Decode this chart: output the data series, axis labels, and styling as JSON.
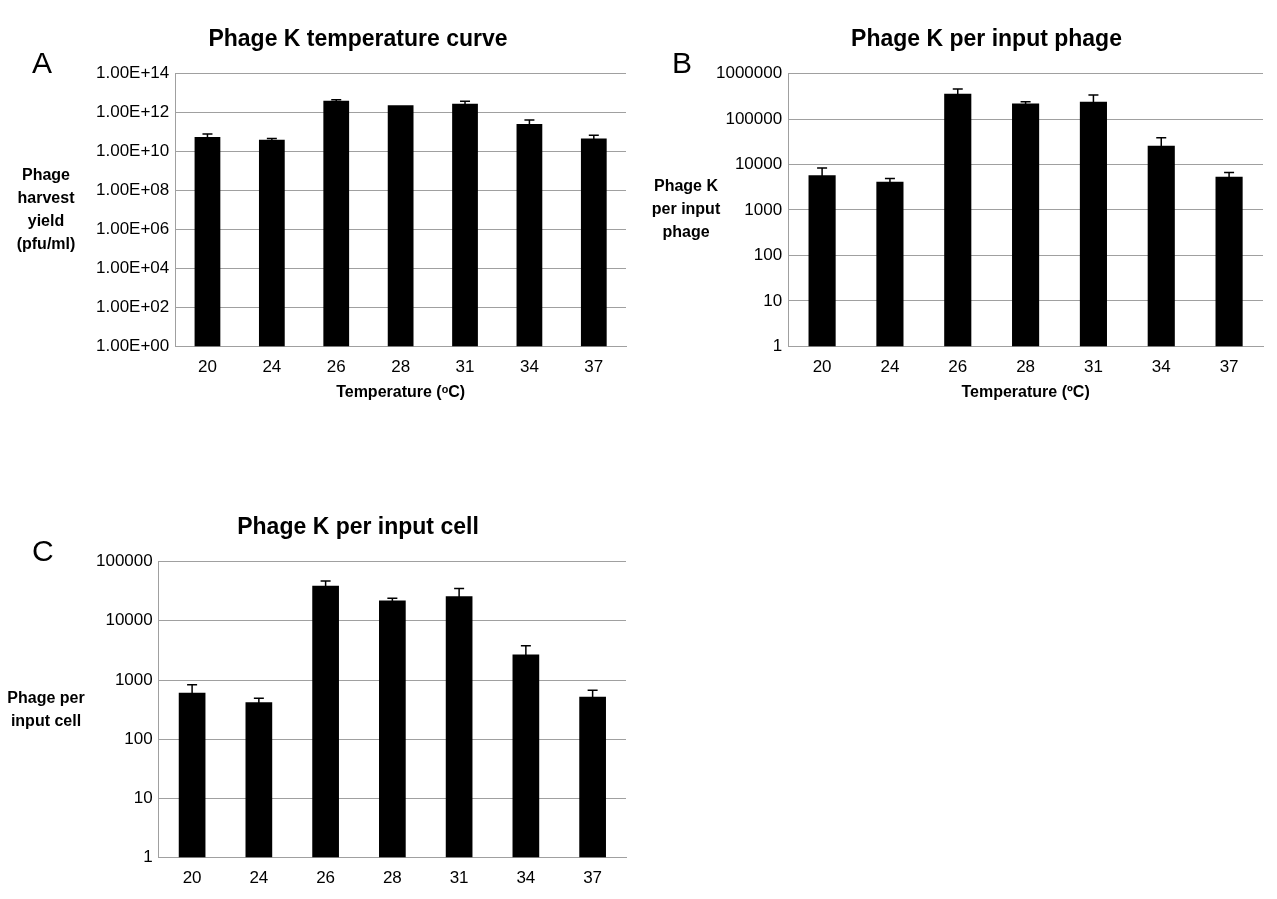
{
  "chart_data": [
    {
      "type": "bar",
      "title": "Phage K temperature curve",
      "xlabel": "Temperature (ᵒC)",
      "ylabel": "Phage harvest yield (pfu/ml)",
      "annotations": [
        "A"
      ],
      "categories": [
        "20",
        "24",
        "26",
        "28",
        "31",
        "34",
        "37"
      ],
      "values": [
        55000000000.0,
        40000000000.0,
        4000000000000.0,
        2400000000000.0,
        2800000000000.0,
        260000000000.0,
        47000000000.0
      ],
      "errors": [
        25000000000.0,
        7000000000.0,
        500000000000.0,
        null,
        1000000000000.0,
        160000000000.0,
        21000000000.0
      ],
      "color": "#000000",
      "log": true,
      "ylim": [
        1,
        100000000000000.0
      ],
      "yticks": [
        {
          "value": 1,
          "label": "1.00E+00"
        },
        {
          "value": 100,
          "label": "1.00E+02"
        },
        {
          "value": 10000,
          "label": "1.00E+04"
        },
        {
          "value": 1000000.0,
          "label": "1.00E+06"
        },
        {
          "value": 100000000.0,
          "label": "1.00E+08"
        },
        {
          "value": 10000000000.0,
          "label": "1.00E+10"
        },
        {
          "value": 1000000000000.0,
          "label": "1.00E+12"
        },
        {
          "value": 100000000000000.0,
          "label": "1.00E+14"
        }
      ],
      "grid": "y"
    },
    {
      "type": "bar",
      "title": "Phage K per input phage",
      "xlabel": "Temperature (ºC)",
      "ylabel": "Phage K per input phage",
      "annotations": [
        "B"
      ],
      "categories": [
        "20",
        "24",
        "26",
        "28",
        "31",
        "34",
        "37"
      ],
      "values": [
        5800,
        4200,
        360000,
        220000,
        240000,
        26000,
        5400
      ],
      "errors": [
        2600,
        700,
        100000,
        20000,
        100000,
        13000,
        1300
      ],
      "color": "#000000",
      "log": true,
      "ylim": [
        1,
        1000000
      ],
      "yticks": [
        1,
        10,
        100,
        1000,
        10000,
        100000,
        1000000
      ],
      "grid": "y"
    },
    {
      "type": "bar",
      "title": "Phage K per input cell",
      "ylabel": "Phage per input cell",
      "annotations": [
        "C"
      ],
      "categories": [
        "20",
        "24",
        "26",
        "28",
        "31",
        "34",
        "37"
      ],
      "values": [
        610,
        420,
        39000,
        22000,
        26000,
        2700,
        520
      ],
      "errors": [
        220,
        70,
        8000,
        2000,
        9000,
        1100,
        150
      ],
      "color": "#000000",
      "log": true,
      "ylim": [
        1,
        100000
      ],
      "yticks": [
        1,
        10,
        100,
        1000,
        10000,
        100000
      ],
      "grid": "y"
    }
  ]
}
